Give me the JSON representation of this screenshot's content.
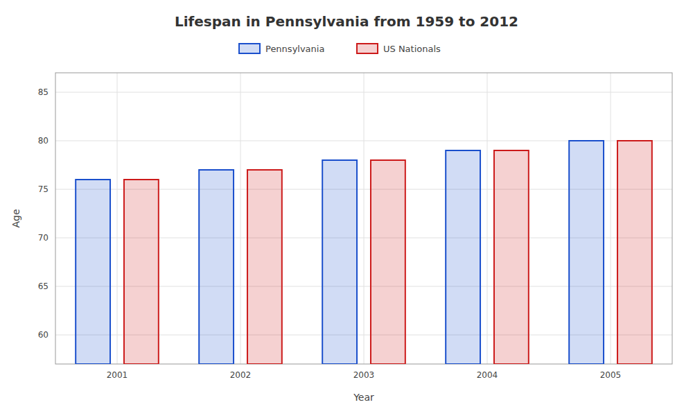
{
  "chart_data": {
    "type": "bar",
    "title": "Lifespan in Pennsylvania from 1959 to 2012",
    "xlabel": "Year",
    "ylabel": "Age",
    "categories": [
      2001,
      2002,
      2003,
      2004,
      2005
    ],
    "series": [
      {
        "name": "Pennsylvania",
        "color": "#1a4fcc",
        "values": [
          76,
          77,
          78,
          79,
          80
        ]
      },
      {
        "name": "US Nationals",
        "color": "#cc1a1a",
        "values": [
          76,
          77,
          78,
          79,
          80
        ]
      }
    ],
    "ylim": [
      57,
      87
    ],
    "yticks": [
      60,
      65,
      70,
      75,
      80,
      85
    ],
    "grid": true,
    "legend": "top"
  }
}
